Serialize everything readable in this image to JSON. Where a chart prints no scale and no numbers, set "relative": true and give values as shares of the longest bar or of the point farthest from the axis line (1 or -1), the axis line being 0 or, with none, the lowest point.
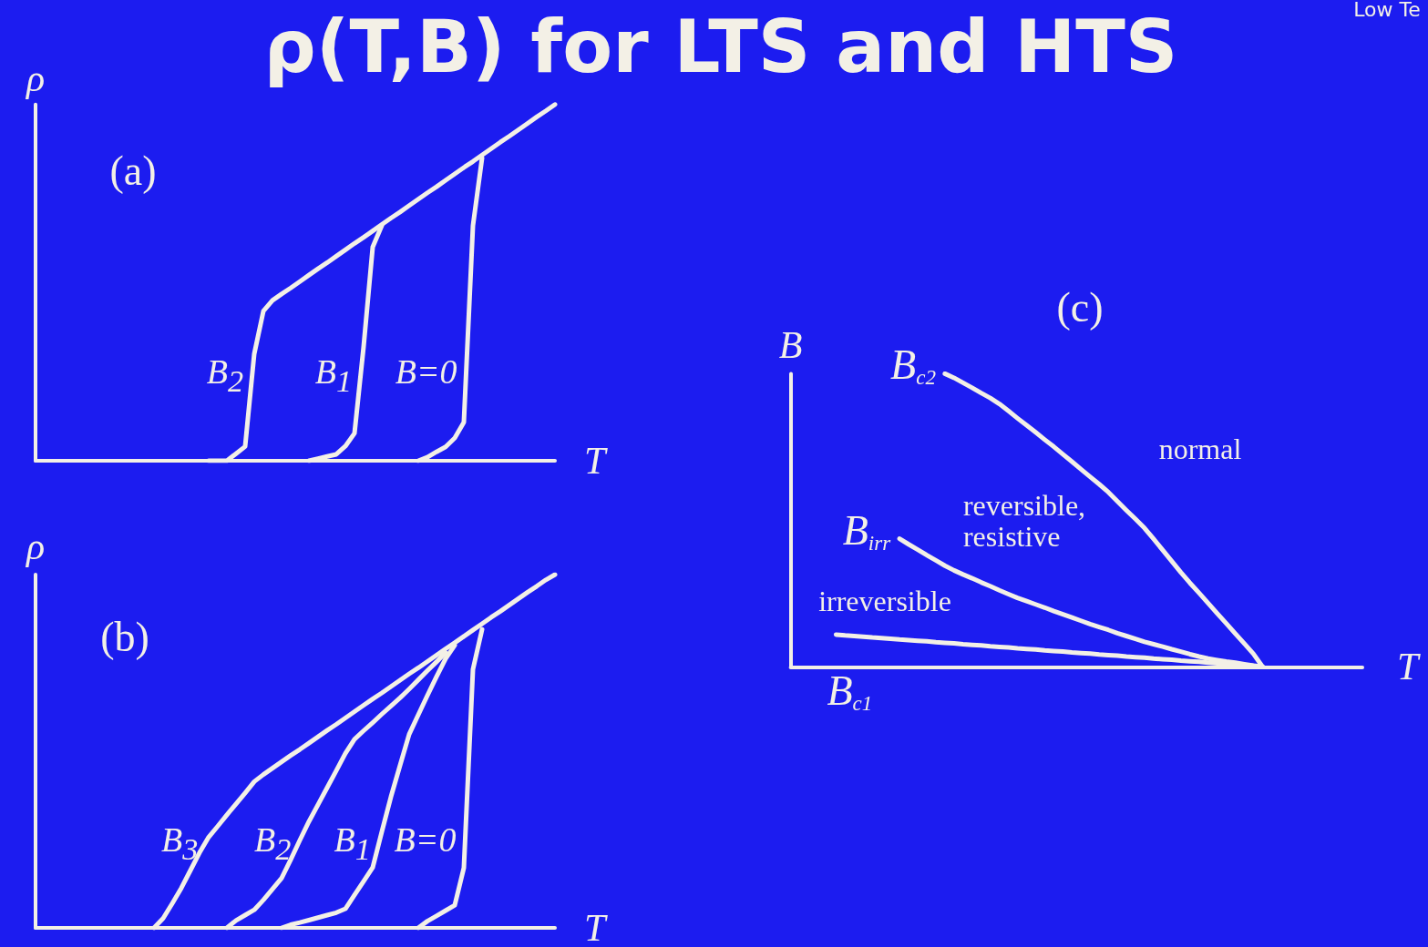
{
  "chart_data": [
    {
      "type": "line",
      "title": "ρ(T,B) for LTS and HTS",
      "xlabel": "T",
      "ylabel": "ρ",
      "relative": true,
      "annotations": [
        "(a)",
        "Low Te"
      ],
      "categories": [
        null,
        null,
        null,
        null,
        null,
        null,
        null,
        null,
        null,
        null,
        null,
        null,
        null,
        null,
        null,
        null,
        null,
        null,
        null,
        null,
        null,
        null,
        null,
        null,
        null,
        null,
        null,
        null,
        null,
        null,
        null,
        null,
        null,
        null,
        null,
        null,
        null,
        null,
        null,
        null,
        null,
        null,
        null,
        null,
        null,
        null,
        null,
        null,
        null,
        null,
        null,
        null,
        null,
        null,
        null,
        null,
        null,
        null
      ],
      "series": [
        {
          "name": "B$_{2}$",
          "color": "#f3f0e6",
          "values": [
            null,
            null,
            null,
            null,
            null,
            null,
            null,
            null,
            null,
            null,
            null,
            null,
            null,
            null,
            null,
            null,
            null,
            null,
            null,
            0,
            0,
            0,
            0.02,
            0.04,
            0.3,
            0.42,
            0.45,
            0.468,
            0.485,
            0.503,
            0.521,
            0.539,
            0.556,
            0.574,
            0.592,
            0.61,
            0.627,
            0.645,
            0.663,
            0.681,
            0.698,
            0.716,
            0.734,
            0.752,
            0.769,
            0.787,
            0.805,
            0.823,
            0.84,
            0.858,
            0.876,
            0.894,
            0.911,
            0.929,
            0.947,
            0.965,
            0.982,
            1.0
          ]
        },
        {
          "name": "B$_{1}$",
          "color": "#f3f0e6",
          "values": [
            null,
            null,
            null,
            null,
            null,
            null,
            null,
            null,
            null,
            null,
            null,
            null,
            null,
            null,
            null,
            null,
            null,
            null,
            null,
            null,
            null,
            null,
            null,
            null,
            null,
            null,
            null,
            null,
            null,
            null,
            0,
            0.006,
            0.012,
            0.018,
            0.041,
            0.077,
            0.32,
            0.6,
            0.66,
            null,
            null,
            null,
            null,
            null,
            null,
            null,
            null,
            null,
            null,
            null,
            null,
            null,
            null,
            null,
            null,
            null,
            null,
            null
          ]
        },
        {
          "name": "B=0",
          "color": "#f3f0e6",
          "values": [
            null,
            null,
            null,
            null,
            null,
            null,
            null,
            null,
            null,
            null,
            null,
            null,
            null,
            null,
            null,
            null,
            null,
            null,
            null,
            null,
            null,
            null,
            null,
            null,
            null,
            null,
            null,
            null,
            null,
            null,
            null,
            null,
            null,
            null,
            null,
            null,
            null,
            null,
            null,
            null,
            null,
            null,
            0,
            0.01,
            0.025,
            0.039,
            0.064,
            0.108,
            0.66,
            0.85,
            null,
            null,
            null,
            null,
            null,
            null,
            null,
            null
          ]
        }
      ]
    },
    {
      "type": "line",
      "xlabel": "T",
      "ylabel": "ρ",
      "relative": true,
      "annotations": [
        "(b)"
      ],
      "categories": [
        null,
        null,
        null,
        null,
        null,
        null,
        null,
        null,
        null,
        null,
        null,
        null,
        null,
        null,
        null,
        null,
        null,
        null,
        null,
        null,
        null,
        null,
        null,
        null,
        null,
        null,
        null,
        null,
        null,
        null,
        null,
        null,
        null,
        null,
        null,
        null,
        null,
        null,
        null,
        null,
        null,
        null,
        null,
        null,
        null,
        null,
        null,
        null,
        null,
        null,
        null,
        null,
        null,
        null,
        null,
        null,
        null,
        null
      ],
      "series": [
        {
          "name": "B$_{3}$",
          "color": "#f3f0e6",
          "values": [
            null,
            null,
            null,
            null,
            null,
            null,
            null,
            null,
            null,
            null,
            null,
            null,
            null,
            0,
            0.027,
            0.069,
            0.113,
            0.163,
            0.213,
            0.257,
            0.288,
            0.32,
            0.351,
            0.382,
            0.414,
            0.434,
            0.452,
            0.47,
            0.488,
            0.505,
            0.523,
            0.541,
            0.559,
            0.576,
            0.594,
            0.612,
            0.63,
            0.648,
            0.665,
            0.683,
            0.701,
            0.719,
            0.736,
            0.754,
            0.772,
            0.79,
            0.807,
            0.825,
            0.843,
            0.861,
            0.879,
            0.896,
            0.914,
            0.932,
            0.95,
            0.967,
            0.985,
            1.0
          ]
        },
        {
          "name": "B$_{2}$",
          "color": "#f3f0e6",
          "values": [
            null,
            null,
            null,
            null,
            null,
            null,
            null,
            null,
            null,
            null,
            null,
            null,
            null,
            null,
            null,
            null,
            null,
            null,
            null,
            null,
            null,
            0,
            0.021,
            0.036,
            0.051,
            0.079,
            0.11,
            0.141,
            0.193,
            0.248,
            0.301,
            0.349,
            0.397,
            0.445,
            0.494,
            0.534,
            0.558,
            0.581,
            0.605,
            0.628,
            0.651,
            0.676,
            0.702,
            0.728,
            0.753,
            0.779,
            null,
            null,
            null,
            null,
            null,
            null,
            null,
            null,
            null,
            null,
            null,
            null
          ]
        },
        {
          "name": "B$_{1}$",
          "color": "#f3f0e6",
          "values": [
            null,
            null,
            null,
            null,
            null,
            null,
            null,
            null,
            null,
            null,
            null,
            null,
            null,
            null,
            null,
            null,
            null,
            null,
            null,
            null,
            null,
            null,
            null,
            null,
            null,
            null,
            null,
            0,
            0.009,
            0.015,
            0.022,
            0.029,
            0.036,
            0.043,
            0.054,
            0.093,
            0.132,
            0.171,
            0.272,
            0.371,
            0.46,
            0.548,
            0.603,
            0.658,
            0.711,
            0.762,
            0.8,
            null,
            null,
            null,
            null,
            null,
            null,
            null,
            null,
            null,
            null,
            null
          ]
        },
        {
          "name": "B=0",
          "color": "#f3f0e6",
          "values": [
            null,
            null,
            null,
            null,
            null,
            null,
            null,
            null,
            null,
            null,
            null,
            null,
            null,
            null,
            null,
            null,
            null,
            null,
            null,
            null,
            null,
            null,
            null,
            null,
            null,
            null,
            null,
            null,
            null,
            null,
            null,
            null,
            null,
            null,
            null,
            null,
            null,
            null,
            null,
            null,
            null,
            null,
            0,
            0.019,
            0.034,
            0.049,
            0.064,
            0.17,
            0.732,
            0.845,
            null,
            null,
            null,
            null,
            null,
            null,
            null,
            null
          ]
        }
      ]
    },
    {
      "type": "line",
      "xlabel": "T",
      "ylabel": "B",
      "relative": true,
      "annotations": [
        "(c)",
        "normal",
        "reversible, resistive",
        "irreversible"
      ],
      "categories": [
        null,
        null,
        null,
        null,
        null,
        null,
        null,
        null,
        null,
        null,
        null,
        null,
        null,
        null,
        null,
        null,
        null,
        null,
        null,
        null,
        null,
        null,
        null,
        null,
        null,
        null,
        null,
        null,
        null,
        null,
        null,
        null,
        null,
        null,
        null,
        null,
        null,
        null,
        null,
        null,
        null,
        null,
        null,
        null,
        null,
        null,
        null,
        null,
        null,
        null,
        null,
        null,
        null,
        null,
        null,
        null,
        null,
        null,
        null,
        null,
        null,
        null,
        null,
        null
      ],
      "series": [
        {
          "name": "B$_{c2}$",
          "color": "#f3f0e6",
          "values": [
            null,
            null,
            null,
            null,
            null,
            null,
            null,
            null,
            null,
            null,
            null,
            null,
            null,
            null,
            null,
            null,
            null,
            1.0,
            0.986,
            0.969,
            0.952,
            0.934,
            0.917,
            0.897,
            0.873,
            0.848,
            0.824,
            0.8,
            0.775,
            0.751,
            0.725,
            0.7,
            0.674,
            0.648,
            0.623,
            0.596,
            0.565,
            0.534,
            0.504,
            0.473,
            0.436,
            0.398,
            0.36,
            0.322,
            0.286,
            0.252,
            0.217,
            0.182,
            0.148,
            0.113,
            0.079,
            0.044,
            0,
            null,
            null,
            null,
            null,
            null,
            null,
            null,
            null,
            null,
            null,
            null
          ]
        },
        {
          "name": "B$_{irr}$",
          "color": "#f3f0e6",
          "values": [
            null,
            null,
            null,
            null,
            null,
            null,
            null,
            null,
            null,
            null,
            null,
            null,
            0.437,
            0.418,
            0.4,
            0.381,
            0.363,
            0.345,
            0.329,
            0.315,
            0.302,
            0.288,
            0.275,
            0.261,
            0.248,
            0.235,
            0.224,
            0.213,
            0.202,
            0.19,
            0.179,
            0.168,
            0.157,
            0.146,
            0.136,
            0.126,
            0.115,
            0.105,
            0.095,
            0.085,
            0.077,
            0.069,
            0.06,
            0.052,
            0.043,
            0.035,
            0.028,
            0.023,
            0.018,
            0.014,
            0.009,
            0.004,
            0,
            null,
            null,
            null,
            null,
            null,
            null,
            null,
            null,
            null,
            null,
            null
          ]
        },
        {
          "name": "B$_{c1}$",
          "color": "#f3f0e6",
          "values": [
            null,
            null,
            null,
            null,
            null,
            0.11,
            0.107,
            0.105,
            0.103,
            0.1,
            0.098,
            0.096,
            0.093,
            0.091,
            0.089,
            0.087,
            0.084,
            0.082,
            0.08,
            0.077,
            0.075,
            0.073,
            0.07,
            0.068,
            0.066,
            0.063,
            0.061,
            0.059,
            0.056,
            0.054,
            0.052,
            0.049,
            0.047,
            0.045,
            0.042,
            0.04,
            0.038,
            0.035,
            0.033,
            0.031,
            0.028,
            0.026,
            0.024,
            0.021,
            0.019,
            0.017,
            0.014,
            0.012,
            0.01,
            0.007,
            0.005,
            0.003,
            0,
            null,
            null,
            null,
            null,
            null,
            null,
            null,
            null,
            null,
            null,
            null
          ]
        }
      ]
    }
  ]
}
